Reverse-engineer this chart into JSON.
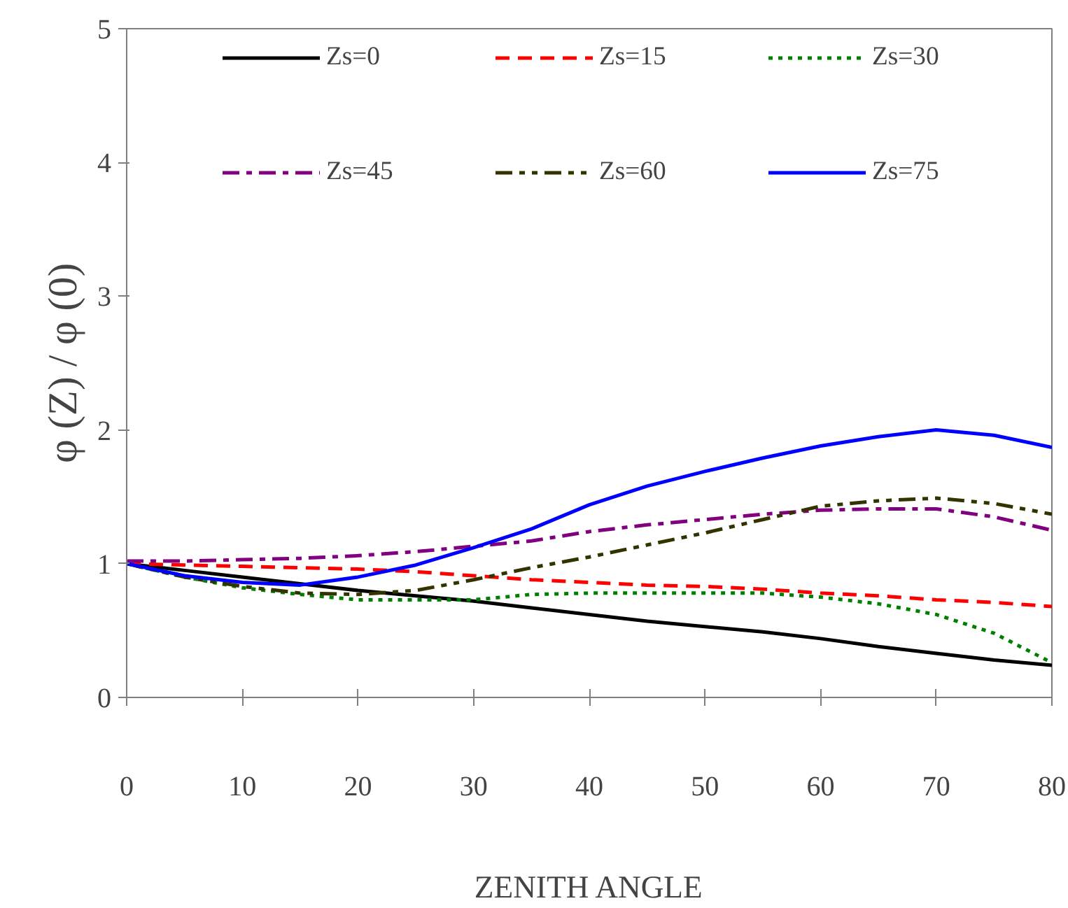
{
  "chart_data": {
    "type": "line",
    "xlabel": "ZENITH ANGLE",
    "ylabel": "φ (Z) / φ (0)",
    "x": [
      0,
      5,
      10,
      15,
      20,
      25,
      30,
      35,
      40,
      45,
      50,
      55,
      60,
      65,
      70,
      75,
      80
    ],
    "series": [
      {
        "name": "Zs=0",
        "color": "#000000",
        "line_style": "solid",
        "values": [
          1.0,
          0.95,
          0.9,
          0.85,
          0.8,
          0.76,
          0.72,
          0.67,
          0.62,
          0.57,
          0.53,
          0.49,
          0.44,
          0.38,
          0.33,
          0.28,
          0.24
        ]
      },
      {
        "name": "Zs=15",
        "color": "#ff0000",
        "line_style": "dashed",
        "values": [
          1.0,
          0.99,
          0.98,
          0.97,
          0.96,
          0.94,
          0.91,
          0.88,
          0.86,
          0.84,
          0.83,
          0.81,
          0.78,
          0.76,
          0.73,
          0.71,
          0.68
        ]
      },
      {
        "name": "Zs=30",
        "color": "#008000",
        "line_style": "dotted",
        "values": [
          1.0,
          0.9,
          0.82,
          0.77,
          0.73,
          0.73,
          0.73,
          0.77,
          0.78,
          0.78,
          0.78,
          0.78,
          0.75,
          0.7,
          0.62,
          0.48,
          0.26
        ]
      },
      {
        "name": "Zs=45",
        "color": "#800080",
        "line_style": "dashdot",
        "values": [
          1.02,
          1.02,
          1.03,
          1.04,
          1.06,
          1.09,
          1.13,
          1.17,
          1.24,
          1.29,
          1.33,
          1.37,
          1.4,
          1.41,
          1.41,
          1.35,
          1.25
        ]
      },
      {
        "name": "Zs=60",
        "color": "#333300",
        "line_style": "dashdotdot",
        "values": [
          1.0,
          0.9,
          0.83,
          0.78,
          0.77,
          0.8,
          0.88,
          0.97,
          1.05,
          1.14,
          1.23,
          1.33,
          1.43,
          1.47,
          1.49,
          1.45,
          1.37
        ]
      },
      {
        "name": "Zs=75",
        "color": "#0000ff",
        "line_style": "solid",
        "values": [
          1.0,
          0.91,
          0.86,
          0.84,
          0.9,
          0.99,
          1.12,
          1.26,
          1.44,
          1.58,
          1.69,
          1.79,
          1.88,
          1.95,
          2.0,
          1.96,
          1.87
        ]
      }
    ],
    "xlim": [
      0,
      80
    ],
    "xticks": [
      0,
      10,
      20,
      30,
      40,
      50,
      60,
      70,
      80
    ],
    "ylim": [
      0,
      5
    ],
    "yticks": [
      0,
      1,
      2,
      3,
      4,
      5
    ],
    "grid": false,
    "legend": "top"
  }
}
